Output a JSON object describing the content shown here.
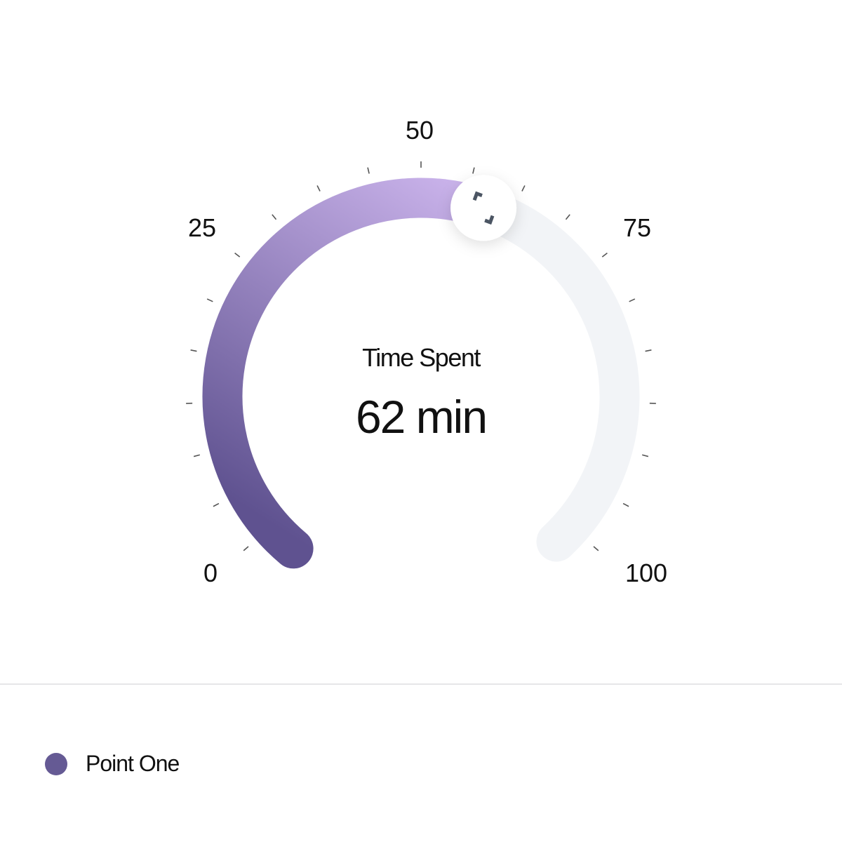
{
  "chart_data": {
    "type": "gauge",
    "min": 0,
    "max": 100,
    "fill_value": 57,
    "tick_step": 5,
    "tick_labels": [
      "0",
      "25",
      "50",
      "75",
      "100"
    ],
    "center_title": "Time Spent",
    "center_value": "62 min",
    "colors": {
      "fill_start": "#5f5290",
      "fill_end": "#c9b2ea",
      "track": "#f2f4f7",
      "tick": "#555555"
    },
    "knob_icon": "expand-corners-icon",
    "legend": [
      {
        "label": "Point One",
        "color": "#655a94"
      }
    ]
  }
}
